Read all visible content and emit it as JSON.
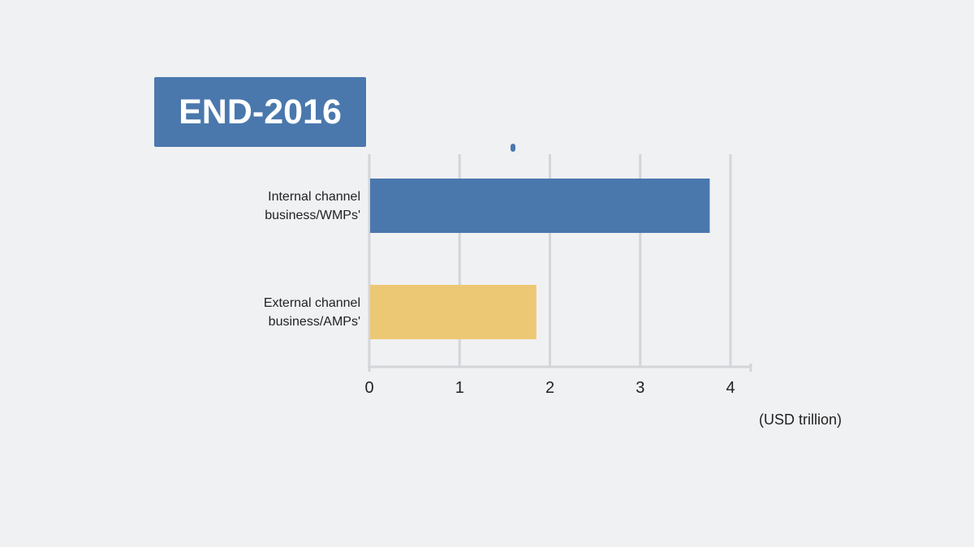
{
  "chart_data": {
    "type": "bar",
    "orientation": "horizontal",
    "title": "END-2016",
    "categories": [
      [
        "Internal channel",
        "business/WMPs'"
      ],
      [
        "External channel",
        "business/AMPs'"
      ]
    ],
    "values": [
      3.77,
      1.85
    ],
    "colors": [
      "#4a78ad",
      "#edc874"
    ],
    "xlabel": "(USD trillion)",
    "ylabel": "",
    "xlim": [
      0,
      4
    ],
    "xticks": [
      "0",
      "1",
      "2",
      "3",
      "4"
    ],
    "grid": true
  }
}
